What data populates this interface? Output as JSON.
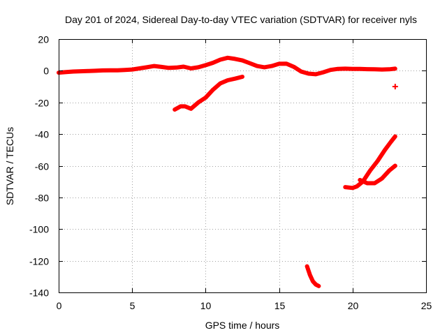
{
  "chart_data": {
    "type": "scatter",
    "title": "Day 201 of 2024, Sidereal Day-to-day VTEC variation (SDTVAR) for receiver nyls",
    "xlabel": "GPS time / hours",
    "ylabel": "SDTVAR / TECUs",
    "xlim": [
      0,
      25
    ],
    "ylim": [
      -140,
      20
    ],
    "x_ticks": [
      0,
      5,
      10,
      15,
      20,
      25
    ],
    "y_ticks": [
      -140,
      -120,
      -100,
      -80,
      -60,
      -40,
      -20,
      0,
      20
    ],
    "grid": true,
    "color": "#ff0000",
    "series": [
      {
        "points": [
          [
            0,
            -1.2
          ],
          [
            0.5,
            -0.8
          ],
          [
            1,
            -0.5
          ],
          [
            1.5,
            -0.3
          ],
          [
            2,
            -0.2
          ],
          [
            2.5,
            0
          ],
          [
            3,
            0.2
          ],
          [
            3.5,
            0.3
          ],
          [
            4,
            0.3
          ],
          [
            4.5,
            0.5
          ],
          [
            5,
            0.8
          ],
          [
            5.5,
            1.5
          ],
          [
            6,
            2.2
          ],
          [
            6.5,
            3
          ],
          [
            7,
            2.4
          ],
          [
            7.5,
            1.8
          ],
          [
            8,
            2
          ],
          [
            8.5,
            2.6
          ],
          [
            9,
            1.5
          ],
          [
            9.5,
            2.2
          ],
          [
            10,
            3.5
          ],
          [
            10.5,
            5
          ],
          [
            11,
            7
          ],
          [
            11.5,
            8.2
          ],
          [
            12,
            7.5
          ],
          [
            12.5,
            6.5
          ],
          [
            13,
            4.8
          ],
          [
            13.5,
            3
          ],
          [
            14,
            2.2
          ],
          [
            14.5,
            3
          ],
          [
            15,
            4.4
          ],
          [
            15.5,
            4.5
          ],
          [
            16,
            2.5
          ],
          [
            16.5,
            -0.5
          ],
          [
            17,
            -1.8
          ],
          [
            17.5,
            -2.2
          ],
          [
            18,
            -1
          ],
          [
            18.5,
            0.5
          ],
          [
            19,
            1.2
          ],
          [
            19.5,
            1.3
          ],
          [
            20,
            1.2
          ],
          [
            20.5,
            1.2
          ],
          [
            21,
            1
          ],
          [
            21.5,
            0.9
          ],
          [
            22,
            0.8
          ],
          [
            22.5,
            0.9
          ],
          [
            22.9,
            1.3
          ]
        ]
      },
      {
        "points": [
          [
            7.9,
            -24.5
          ],
          [
            8.3,
            -22.5
          ],
          [
            8.6,
            -22.5
          ],
          [
            9,
            -24
          ],
          [
            9.5,
            -20
          ],
          [
            10,
            -17
          ],
          [
            10.5,
            -12
          ],
          [
            11,
            -8
          ],
          [
            11.5,
            -6
          ],
          [
            12,
            -5
          ],
          [
            12.5,
            -3.8
          ]
        ]
      },
      {
        "points": [
          [
            22.9,
            -10
          ]
        ]
      },
      {
        "points": [
          [
            19.5,
            -73.5
          ],
          [
            20,
            -74
          ],
          [
            20.3,
            -73
          ],
          [
            20.7,
            -70
          ],
          [
            21.2,
            -63
          ],
          [
            21.7,
            -57
          ],
          [
            22.2,
            -50
          ],
          [
            22.6,
            -45
          ],
          [
            22.9,
            -41.5
          ]
        ]
      },
      {
        "points": [
          [
            20.5,
            -69
          ],
          [
            21,
            -71
          ],
          [
            21.5,
            -71
          ],
          [
            22,
            -68
          ],
          [
            22.5,
            -63
          ],
          [
            22.9,
            -60
          ]
        ]
      },
      {
        "points": [
          [
            16.9,
            -123.5
          ],
          [
            17.1,
            -129
          ],
          [
            17.3,
            -133
          ],
          [
            17.5,
            -135
          ],
          [
            17.7,
            -136
          ]
        ]
      }
    ]
  }
}
